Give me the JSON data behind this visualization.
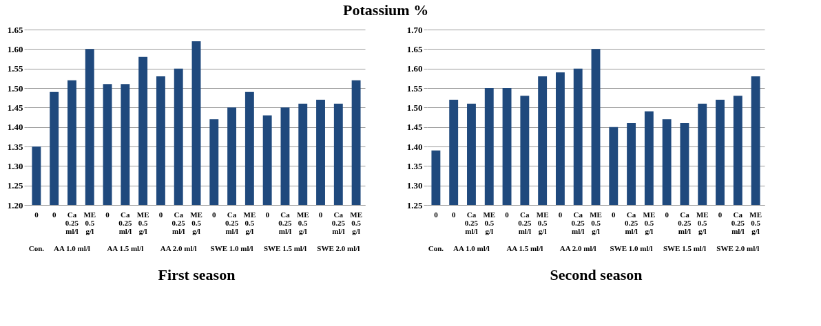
{
  "chart_data": [
    {
      "type": "bar",
      "title": "Potassium %",
      "xlabel": "First season",
      "categories": [
        "0",
        "0",
        "Ca 0.25 ml/l",
        "ME 0.5 g/l",
        "0",
        "Ca 0.25 ml/l",
        "ME 0.5 g/l",
        "0",
        "Ca 0.25 ml/l",
        "ME 0.5 g/l",
        "0",
        "Ca 0.25 ml/l",
        "ME 0.5 g/l",
        "0",
        "Ca 0.25 ml/l",
        "ME 0.5 g/l",
        "0",
        "Ca 0.25 ml/l",
        "ME 0.5 g/l"
      ],
      "values": [
        1.35,
        1.49,
        1.52,
        1.6,
        1.51,
        1.51,
        1.58,
        1.53,
        1.55,
        1.62,
        1.42,
        1.45,
        1.49,
        1.43,
        1.45,
        1.46,
        1.47,
        1.46,
        1.52
      ],
      "color": "#1f497d",
      "ylim": [
        1.2,
        1.65
      ],
      "yticks": [
        {
          "value": 1.2,
          "label": "1.20"
        },
        {
          "value": 1.25,
          "label": "1.25"
        },
        {
          "value": 1.3,
          "label": "1.30"
        },
        {
          "value": 1.35,
          "label": "1.35"
        },
        {
          "value": 1.4,
          "label": "1.40"
        },
        {
          "value": 1.45,
          "label": "1.45"
        },
        {
          "value": 1.5,
          "label": "1.50"
        },
        {
          "value": 1.55,
          "label": "1.55"
        },
        {
          "value": 1.6,
          "label": "1.60"
        },
        {
          "value": 1.65,
          "label": "1.65"
        }
      ],
      "grid": "y",
      "annotations": [
        "Con.",
        "AA 1.0 ml/l",
        "AA 1.5 ml/l",
        "AA 2.0 ml/l",
        "SWE 1.0 ml/l",
        "SWE 1.5 ml/l",
        "SWE 2.0 ml/l"
      ]
    },
    {
      "type": "bar",
      "xlabel": "Second season",
      "categories": [
        "0",
        "0",
        "Ca 0.25 ml/l",
        "ME 0.5 g/l",
        "0",
        "Ca 0.25 ml/l",
        "ME 0.5 g/l",
        "0",
        "Ca 0.25 ml/l",
        "ME 0.5 g/l",
        "0",
        "Ca 0.25 ml/l",
        "ME 0.5 g/l",
        "0",
        "Ca 0.25 ml/l",
        "ME 0.5 g/l",
        "0",
        "Ca 0.25 ml/l",
        "ME 0.5 g/l"
      ],
      "values": [
        1.39,
        1.52,
        1.51,
        1.55,
        1.55,
        1.53,
        1.58,
        1.59,
        1.6,
        1.65,
        1.45,
        1.46,
        1.49,
        1.47,
        1.46,
        1.51,
        1.52,
        1.53,
        1.58
      ],
      "color": "#1f497d",
      "ylim": [
        1.25,
        1.7
      ],
      "yticks": [
        {
          "value": 1.25,
          "label": "1.25"
        },
        {
          "value": 1.3,
          "label": "1.30"
        },
        {
          "value": 1.35,
          "label": "1.35"
        },
        {
          "value": 1.4,
          "label": "1.40"
        },
        {
          "value": 1.45,
          "label": "1.45"
        },
        {
          "value": 1.5,
          "label": "1.50"
        },
        {
          "value": 1.55,
          "label": "1.55"
        },
        {
          "value": 1.6,
          "label": "1.60"
        },
        {
          "value": 1.65,
          "label": "1.65"
        },
        {
          "value": 1.7,
          "label": "1.70"
        }
      ],
      "grid": "y",
      "annotations": [
        "Con.",
        "AA 1.0 ml/l",
        "AA 1.5 ml/l",
        "AA 2.0 ml/l",
        "SWE 1.0 ml/l",
        "SWE 1.5 ml/l",
        "SWE 2.0 ml/l"
      ]
    }
  ]
}
